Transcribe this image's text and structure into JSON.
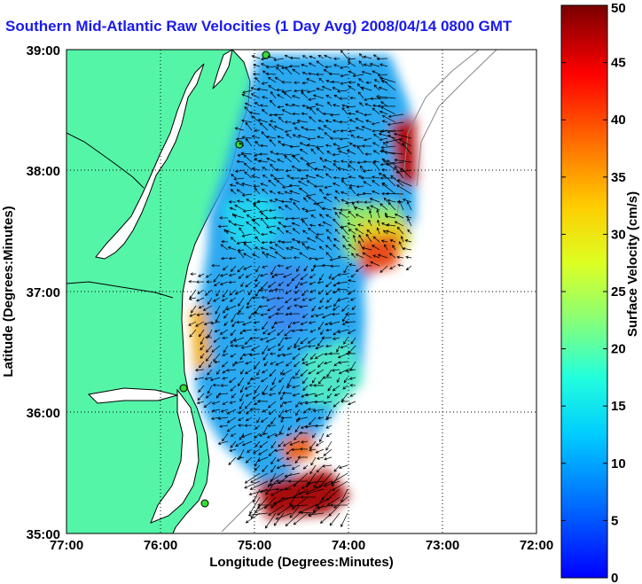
{
  "title": "Southern Mid-Atlantic Raw Velocities (1 Day Avg) 2008/04/14 0800 GMT",
  "map": {
    "xlabel": "Longitude (Degrees:Minutes)",
    "ylabel": "Latitude (Degrees:Minutes)",
    "xticks": [
      "77:00",
      "76:00",
      "75:00",
      "74:00",
      "73:00",
      "72:00"
    ],
    "yticks": [
      "39:00",
      "38:00",
      "37:00",
      "36:00",
      "35:00"
    ],
    "land_color": "#55f5a8",
    "grid": "dotted"
  },
  "colorbar": {
    "label": "Surface Velocity (cm/s)",
    "ticks": [
      "0",
      "5",
      "10",
      "15",
      "20",
      "25",
      "30",
      "35",
      "40",
      "45",
      "50"
    ],
    "min": 0,
    "max": 50
  },
  "chart_data": {
    "type": "heatmap",
    "title": "Southern Mid-Atlantic Raw Velocities (1 Day Avg) 2008/04/14 0800 GMT",
    "xlabel": "Longitude (Degrees:Minutes)",
    "ylabel": "Latitude (Degrees:Minutes)",
    "xlim": [
      "77:00",
      "72:00"
    ],
    "ylim": [
      "35:00",
      "39:00"
    ],
    "value_label": "Surface Velocity (cm/s)",
    "value_range": [
      0,
      50
    ]
  }
}
